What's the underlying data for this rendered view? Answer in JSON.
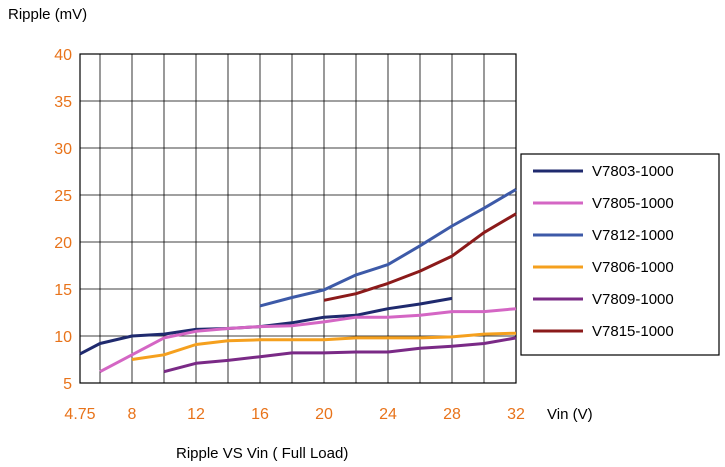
{
  "chart_data": {
    "type": "line",
    "title": "",
    "caption": "Ripple VS Vin ( Full Load)",
    "ylabel": "Ripple (mV)",
    "xlabel": "Vin  (V)",
    "xlim": [
      4.75,
      32
    ],
    "ylim": [
      5,
      40
    ],
    "x_ticks": [
      {
        "value": 4.75,
        "label": "4.75"
      },
      {
        "value": 8,
        "label": "8"
      },
      {
        "value": 12,
        "label": "12"
      },
      {
        "value": 16,
        "label": "16"
      },
      {
        "value": 20,
        "label": "20"
      },
      {
        "value": 24,
        "label": "24"
      },
      {
        "value": 28,
        "label": "28"
      },
      {
        "value": 32,
        "label": "32"
      }
    ],
    "x_gridlines": [
      4.75,
      6,
      8,
      10,
      12,
      14,
      16,
      18,
      20,
      22,
      24,
      26,
      28,
      30,
      32
    ],
    "y_ticks": [
      5,
      10,
      15,
      20,
      25,
      30,
      35,
      40
    ],
    "grid": true,
    "legend_position": "right",
    "series": [
      {
        "name": "V7803-1000",
        "color": "#1f2a6e",
        "x": [
          4.75,
          6,
          8,
          10,
          12,
          14,
          16,
          18,
          20,
          22,
          24,
          26,
          28
        ],
        "y": [
          8.1,
          9.2,
          10.0,
          10.2,
          10.7,
          10.8,
          11.0,
          11.4,
          12.0,
          12.2,
          12.9,
          13.4,
          14.0
        ]
      },
      {
        "name": "V7805-1000",
        "color": "#d466c4",
        "x": [
          6,
          8,
          10,
          12,
          14,
          16,
          18,
          20,
          22,
          24,
          26,
          28,
          30,
          32
        ],
        "y": [
          6.2,
          8.0,
          9.8,
          10.5,
          10.8,
          11.0,
          11.1,
          11.5,
          12.0,
          12.0,
          12.2,
          12.6,
          12.6,
          12.9
        ]
      },
      {
        "name": "V7812-1000",
        "color": "#3d5aa8",
        "x": [
          16,
          18,
          20,
          22,
          24,
          26,
          28,
          30,
          32
        ],
        "y": [
          13.2,
          14.1,
          14.9,
          16.5,
          17.6,
          19.6,
          21.7,
          23.6,
          25.6
        ]
      },
      {
        "name": "V7806-1000",
        "color": "#f5a01e",
        "x": [
          8,
          10,
          12,
          14,
          16,
          18,
          20,
          22,
          24,
          26,
          28,
          30,
          32
        ],
        "y": [
          7.5,
          8.0,
          9.1,
          9.5,
          9.6,
          9.6,
          9.6,
          9.8,
          9.8,
          9.8,
          9.9,
          10.2,
          10.3
        ]
      },
      {
        "name": "V7809-1000",
        "color": "#7a2a86",
        "x": [
          10,
          12,
          14,
          16,
          18,
          20,
          22,
          24,
          26,
          28,
          30,
          32
        ],
        "y": [
          6.2,
          7.1,
          7.4,
          7.8,
          8.2,
          8.2,
          8.3,
          8.3,
          8.7,
          8.9,
          9.2,
          9.8
        ]
      },
      {
        "name": "V7815-1000",
        "color": "#8b1a1a",
        "x": [
          20,
          22,
          24,
          26,
          28,
          30,
          32
        ],
        "y": [
          13.8,
          14.5,
          15.6,
          16.9,
          18.5,
          21.0,
          23.0
        ]
      }
    ]
  }
}
